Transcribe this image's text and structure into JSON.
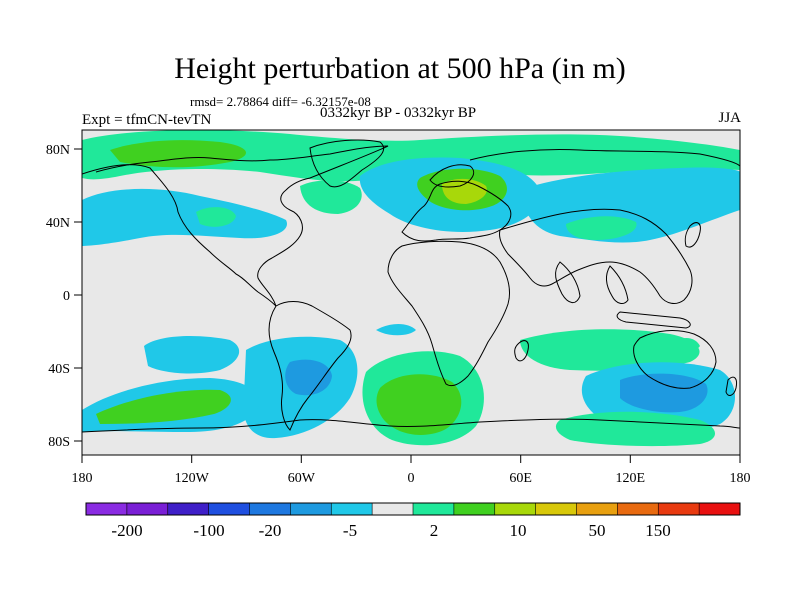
{
  "title": "Height perturbation at 500 hPa (in m)",
  "stats": "rmsd= 2.78864 diff= -6.32157e-08",
  "experiment": "Expt = tfmCN-tevTN",
  "period": "0332kyr BP - 0332kyr BP",
  "season": "JJA",
  "x_ticks": [
    "180",
    "120W",
    "60W",
    "0",
    "60E",
    "120E",
    "180"
  ],
  "y_ticks": [
    "80N",
    "40N",
    "0",
    "40S",
    "80S"
  ],
  "colorbar": {
    "colors": [
      "#8a2be2",
      "#7a1fd6",
      "#3f1fc8",
      "#1f4fe0",
      "#1e78e0",
      "#1e9ae0",
      "#20c8e8",
      "#e8e8e8",
      "#20e89a",
      "#40d020",
      "#a8d80a",
      "#d8c80a",
      "#e8a010",
      "#e86a10",
      "#e83a10",
      "#e81010"
    ],
    "labels": [
      "-200",
      "-100",
      "-20",
      "-5",
      "2",
      "10",
      "50",
      "150"
    ]
  },
  "palette": {
    "neutral": "#e8e8e8",
    "light_blue": "#20c8e8",
    "mid_blue": "#1e9ae0",
    "light_green": "#20e89a",
    "green": "#40d020",
    "yellow_green": "#a8d80a"
  }
}
